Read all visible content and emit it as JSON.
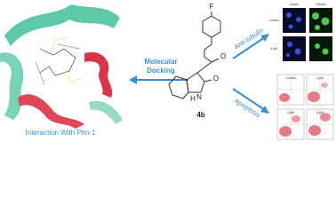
{
  "labels": {
    "interaction": "Interaction With Pim-1",
    "docking_line1": "Molecular",
    "docking_line2": "Docking",
    "anti_tubulin": "Anti-tubulin",
    "apoptosis": "Apoptosis",
    "compound": "4b"
  },
  "structure": {
    "fluorine": "F",
    "carbonyl_oxygen": "O",
    "lactam_oxygen": "O",
    "nitrogen": "N",
    "hydrogen": "H"
  },
  "microscopy": {
    "columns": [
      "Nuclei",
      "Tubulin"
    ],
    "rows": [
      "Control",
      "4 μM"
    ]
  },
  "flow": {
    "panels": [
      "Control",
      "2 μM",
      "4 μM",
      "8 μM"
    ]
  }
}
